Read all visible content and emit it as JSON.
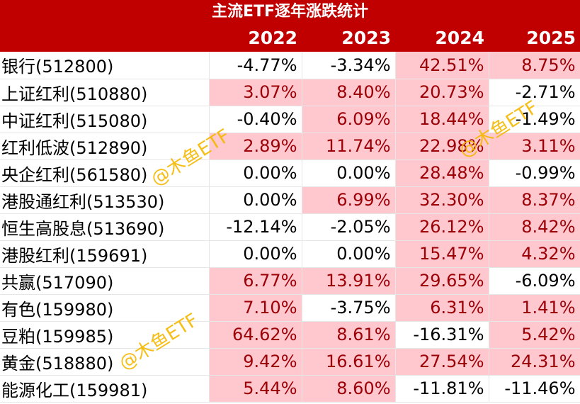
{
  "title": "主流ETF逐年涨跌统计",
  "years": [
    "2022",
    "2023",
    "2024",
    "2025"
  ],
  "rows": [
    {
      "name": "银行(512800)",
      "values": [
        "-4.77%",
        "-3.34%",
        "42.51%",
        "8.75%"
      ]
    },
    {
      "name": "上证红利(510880)",
      "values": [
        "3.07%",
        "8.40%",
        "20.73%",
        "-2.71%"
      ]
    },
    {
      "name": "中证红利(515080)",
      "values": [
        "-0.40%",
        "6.09%",
        "18.44%",
        "-1.49%"
      ]
    },
    {
      "name": "红利低波(512890)",
      "values": [
        "2.89%",
        "11.74%",
        "22.98%",
        "3.11%"
      ]
    },
    {
      "name": "央企红利(561580)",
      "values": [
        "0.00%",
        "0.00%",
        "28.48%",
        "-0.99%"
      ]
    },
    {
      "name": "港股通红利(513530)",
      "values": [
        "0.00%",
        "6.99%",
        "32.30%",
        "8.37%"
      ]
    },
    {
      "name": "恒生高股息(513690)",
      "values": [
        "-12.14%",
        "-2.05%",
        "26.12%",
        "8.42%"
      ]
    },
    {
      "name": "港股红利(159691)",
      "values": [
        "0.00%",
        "0.00%",
        "15.47%",
        "4.32%"
      ]
    },
    {
      "name": "共赢(517090)",
      "values": [
        "6.77%",
        "13.91%",
        "29.65%",
        "-6.09%"
      ]
    },
    {
      "name": "有色(159980)",
      "values": [
        "7.10%",
        "-3.75%",
        "6.31%",
        "1.41%"
      ]
    },
    {
      "name": "豆粕(159985)",
      "values": [
        "64.62%",
        "8.61%",
        "-16.31%",
        "5.42%"
      ]
    },
    {
      "name": "黄金(518880)",
      "values": [
        "9.42%",
        "16.61%",
        "27.54%",
        "24.31%"
      ]
    },
    {
      "name": "能源化工(159981)",
      "values": [
        "5.44%",
        "8.60%",
        "-11.81%",
        "-11.46%"
      ]
    }
  ],
  "colors": {
    "header_bg": "#c00000",
    "positive_bg": "#ffc7ce",
    "positive_text": "#9c0006",
    "neutral_text": "#000000",
    "watermark": "#f5b800"
  },
  "watermark": "@木鱼ETF"
}
